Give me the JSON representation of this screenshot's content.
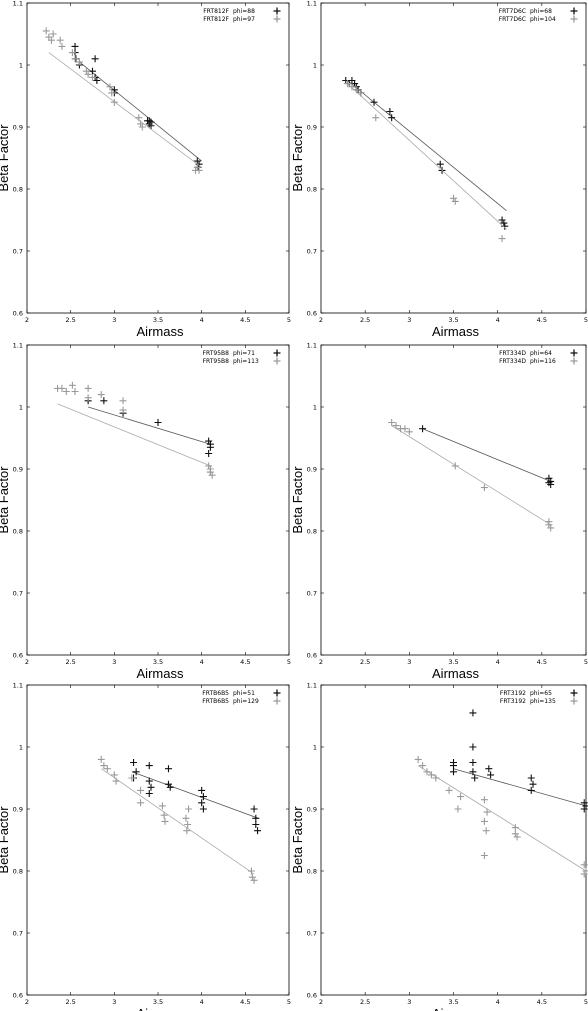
{
  "colors": {
    "dark": "#111111",
    "light": "#9a9a9a",
    "frame": "#000000",
    "dark_line": "#555555",
    "light_line": "#aaaaaa"
  },
  "chart_data": [
    {
      "type": "scatter",
      "xlabel": "Airmass",
      "ylabel": "Beta Factor",
      "xlim": [
        2,
        5
      ],
      "ylim": [
        0.6,
        1.1
      ],
      "xticks": [
        "2",
        "2.5",
        "3",
        "3.5",
        "4",
        "4.5",
        "5"
      ],
      "yticks": [
        "0.6",
        "0.7",
        "0.8",
        "0.9",
        "1",
        "1.1"
      ],
      "legend_position": "top-right",
      "series": [
        {
          "name": "FRT812F",
          "label": "phi=88",
          "color": "dark",
          "points": [
            [
              2.55,
              1.03
            ],
            [
              2.55,
              1.02
            ],
            [
              2.56,
              1.01
            ],
            [
              2.6,
              1.0
            ],
            [
              2.75,
              0.99
            ],
            [
              2.78,
              0.98
            ],
            [
              2.8,
              0.975
            ],
            [
              2.78,
              1.01
            ],
            [
              3.0,
              0.96
            ],
            [
              3.0,
              0.955
            ],
            [
              3.38,
              0.91
            ],
            [
              3.4,
              0.905
            ],
            [
              3.42,
              0.902
            ],
            [
              3.4,
              0.91
            ],
            [
              3.42,
              0.908
            ],
            [
              3.95,
              0.845
            ],
            [
              3.97,
              0.84
            ],
            [
              3.96,
              0.835
            ]
          ],
          "fit": [
            [
              2.6,
              1.005
            ],
            [
              4.0,
              0.845
            ]
          ]
        },
        {
          "name": "FRT812F",
          "label": "phi=97",
          "color": "light",
          "points": [
            [
              2.22,
              1.055
            ],
            [
              2.25,
              1.045
            ],
            [
              2.28,
              1.04
            ],
            [
              2.3,
              1.05
            ],
            [
              2.38,
              1.04
            ],
            [
              2.4,
              1.03
            ],
            [
              2.52,
              1.02
            ],
            [
              2.55,
              1.01
            ],
            [
              2.6,
              1.005
            ],
            [
              2.68,
              0.99
            ],
            [
              2.7,
              0.985
            ],
            [
              2.75,
              0.98
            ],
            [
              2.95,
              0.965
            ],
            [
              2.97,
              0.955
            ],
            [
              3.0,
              0.94
            ],
            [
              3.28,
              0.915
            ],
            [
              3.3,
              0.905
            ],
            [
              3.32,
              0.9
            ],
            [
              3.95,
              0.835
            ],
            [
              3.97,
              0.83
            ],
            [
              3.93,
              0.83
            ]
          ],
          "fit": [
            [
              2.25,
              1.02
            ],
            [
              4.0,
              0.835
            ]
          ]
        }
      ]
    },
    {
      "type": "scatter",
      "xlabel": "Airmass",
      "ylabel": "Beta Factor",
      "xlim": [
        2,
        5
      ],
      "ylim": [
        0.6,
        1.1
      ],
      "xticks": [
        "2",
        "2.5",
        "3",
        "3.5",
        "4",
        "4.5",
        "5"
      ],
      "yticks": [
        "0.6",
        "0.7",
        "0.8",
        "0.9",
        "1",
        "1.1"
      ],
      "legend_position": "top-right",
      "series": [
        {
          "name": "FRT7D6C",
          "label": "phi=68",
          "color": "dark",
          "points": [
            [
              2.28,
              0.975
            ],
            [
              2.32,
              0.97
            ],
            [
              2.35,
              0.975
            ],
            [
              2.38,
              0.97
            ],
            [
              2.4,
              0.965
            ],
            [
              2.42,
              0.96
            ],
            [
              2.45,
              0.955
            ],
            [
              2.6,
              0.94
            ],
            [
              2.78,
              0.925
            ],
            [
              2.8,
              0.915
            ],
            [
              3.35,
              0.84
            ],
            [
              3.37,
              0.83
            ],
            [
              4.05,
              0.75
            ],
            [
              4.07,
              0.745
            ],
            [
              4.08,
              0.74
            ]
          ],
          "fit": [
            [
              2.3,
              0.975
            ],
            [
              4.1,
              0.765
            ]
          ]
        },
        {
          "name": "FRT7D6C",
          "label": "phi=104",
          "color": "light",
          "points": [
            [
              2.3,
              0.97
            ],
            [
              2.35,
              0.965
            ],
            [
              2.4,
              0.96
            ],
            [
              2.45,
              0.955
            ],
            [
              2.62,
              0.915
            ],
            [
              3.5,
              0.785
            ],
            [
              3.52,
              0.78
            ],
            [
              4.05,
              0.72
            ]
          ],
          "fit": [
            [
              2.3,
              0.97
            ],
            [
              4.1,
              0.735
            ]
          ]
        }
      ]
    },
    {
      "type": "scatter",
      "xlabel": "Airmass",
      "ylabel": "Beta Factor",
      "xlim": [
        2,
        5
      ],
      "ylim": [
        0.6,
        1.1
      ],
      "xticks": [
        "2",
        "2.5",
        "3",
        "3.5",
        "4",
        "4.5",
        "5"
      ],
      "yticks": [
        "0.6",
        "0.7",
        "0.8",
        "0.9",
        "1",
        "1.1"
      ],
      "legend_position": "top-right",
      "series": [
        {
          "name": "FRT95B8",
          "label": "phi=71",
          "color": "dark",
          "points": [
            [
              2.7,
              1.01
            ],
            [
              2.88,
              1.01
            ],
            [
              3.1,
              0.99
            ],
            [
              3.5,
              0.975
            ],
            [
              4.08,
              0.945
            ],
            [
              4.1,
              0.94
            ],
            [
              4.1,
              0.935
            ],
            [
              4.08,
              0.925
            ]
          ],
          "fit": [
            [
              2.7,
              1.0
            ],
            [
              4.1,
              0.94
            ]
          ]
        },
        {
          "name": "FRT95B8",
          "label": "phi=113",
          "color": "light",
          "points": [
            [
              2.35,
              1.03
            ],
            [
              2.4,
              1.03
            ],
            [
              2.45,
              1.025
            ],
            [
              2.52,
              1.035
            ],
            [
              2.55,
              1.025
            ],
            [
              2.7,
              1.03
            ],
            [
              2.7,
              1.015
            ],
            [
              2.85,
              1.02
            ],
            [
              3.1,
              1.01
            ],
            [
              3.1,
              0.995
            ],
            [
              4.08,
              0.905
            ],
            [
              4.1,
              0.9
            ],
            [
              4.1,
              0.895
            ],
            [
              4.12,
              0.89
            ],
            [
              4.1,
              0.895
            ]
          ],
          "fit": [
            [
              2.35,
              1.005
            ],
            [
              4.1,
              0.905
            ]
          ]
        }
      ]
    },
    {
      "type": "scatter",
      "xlabel": "Airmass",
      "ylabel": "Beta Factor",
      "xlim": [
        2,
        5
      ],
      "ylim": [
        0.6,
        1.1
      ],
      "xticks": [
        "2",
        "2.5",
        "3",
        "3.5",
        "4",
        "4.5",
        "5"
      ],
      "yticks": [
        "0.6",
        "0.7",
        "0.8",
        "0.9",
        "1",
        "1.1"
      ],
      "legend_position": "top-right",
      "series": [
        {
          "name": "FRT334D",
          "label": "phi=64",
          "color": "dark",
          "points": [
            [
              3.15,
              0.965
            ],
            [
              4.58,
              0.885
            ],
            [
              4.6,
              0.88
            ],
            [
              4.6,
              0.875
            ],
            [
              4.58,
              0.878
            ]
          ],
          "fit": [
            [
              3.15,
              0.965
            ],
            [
              4.6,
              0.88
            ]
          ]
        },
        {
          "name": "FRT334D",
          "label": "phi=116",
          "color": "light",
          "points": [
            [
              2.8,
              0.975
            ],
            [
              2.85,
              0.97
            ],
            [
              2.9,
              0.965
            ],
            [
              2.95,
              0.965
            ],
            [
              3.0,
              0.96
            ],
            [
              3.52,
              0.905
            ],
            [
              3.85,
              0.87
            ],
            [
              4.58,
              0.815
            ],
            [
              4.58,
              0.81
            ],
            [
              4.6,
              0.805
            ]
          ],
          "fit": [
            [
              2.8,
              0.97
            ],
            [
              4.6,
              0.81
            ]
          ]
        }
      ]
    },
    {
      "type": "scatter",
      "xlabel": "Airmass",
      "ylabel": "Beta Factor",
      "xlim": [
        2,
        5
      ],
      "ylim": [
        0.6,
        1.1
      ],
      "xticks": [
        "2",
        "2.5",
        "3",
        "3.5",
        "4",
        "4.5",
        "5"
      ],
      "yticks": [
        "0.6",
        "0.7",
        "0.8",
        "0.9",
        "1",
        "1.1"
      ],
      "legend_position": "top-right",
      "series": [
        {
          "name": "FRTB6B5",
          "label": "phi=51",
          "color": "dark",
          "points": [
            [
              3.22,
              0.975
            ],
            [
              3.25,
              0.96
            ],
            [
              3.22,
              0.95
            ],
            [
              3.4,
              0.97
            ],
            [
              3.4,
              0.945
            ],
            [
              3.42,
              0.935
            ],
            [
              3.4,
              0.925
            ],
            [
              3.62,
              0.965
            ],
            [
              3.62,
              0.94
            ],
            [
              3.64,
              0.935
            ],
            [
              4.0,
              0.93
            ],
            [
              4.02,
              0.92
            ],
            [
              4.0,
              0.91
            ],
            [
              4.02,
              0.9
            ],
            [
              4.6,
              0.9
            ],
            [
              4.62,
              0.885
            ],
            [
              4.62,
              0.875
            ],
            [
              4.64,
              0.865
            ]
          ],
          "fit": [
            [
              3.2,
              0.96
            ],
            [
              4.65,
              0.885
            ]
          ]
        },
        {
          "name": "FRTB6B5",
          "label": "phi=129",
          "color": "light",
          "points": [
            [
              2.85,
              0.98
            ],
            [
              2.88,
              0.97
            ],
            [
              2.92,
              0.965
            ],
            [
              3.0,
              0.955
            ],
            [
              3.02,
              0.945
            ],
            [
              3.2,
              0.95
            ],
            [
              3.3,
              0.93
            ],
            [
              3.3,
              0.91
            ],
            [
              3.55,
              0.905
            ],
            [
              3.57,
              0.89
            ],
            [
              3.58,
              0.88
            ],
            [
              3.82,
              0.885
            ],
            [
              3.84,
              0.875
            ],
            [
              3.83,
              0.865
            ],
            [
              3.85,
              0.9
            ],
            [
              4.57,
              0.8
            ],
            [
              4.58,
              0.79
            ],
            [
              4.6,
              0.785
            ]
          ],
          "fit": [
            [
              2.85,
              0.965
            ],
            [
              4.6,
              0.795
            ]
          ]
        }
      ]
    },
    {
      "type": "scatter",
      "xlabel": "Airmass",
      "ylabel": "Beta Factor",
      "xlim": [
        2,
        5
      ],
      "ylim": [
        0.6,
        1.1
      ],
      "xticks": [
        "2",
        "2.5",
        "3",
        "3.5",
        "4",
        "4.5",
        "5"
      ],
      "yticks": [
        "0.6",
        "0.7",
        "0.8",
        "0.9",
        "1",
        "1.1"
      ],
      "legend_position": "top-right",
      "series": [
        {
          "name": "FRT3192",
          "label": "phi=65",
          "color": "dark",
          "points": [
            [
              3.5,
              0.975
            ],
            [
              3.5,
              0.97
            ],
            [
              3.5,
              0.96
            ],
            [
              3.72,
              1.055
            ],
            [
              3.72,
              1.0
            ],
            [
              3.72,
              0.975
            ],
            [
              3.72,
              0.96
            ],
            [
              3.74,
              0.95
            ],
            [
              3.9,
              0.965
            ],
            [
              3.92,
              0.955
            ],
            [
              4.38,
              0.95
            ],
            [
              4.4,
              0.94
            ],
            [
              4.38,
              0.93
            ],
            [
              4.98,
              0.91
            ],
            [
              5.0,
              0.905
            ],
            [
              4.98,
              0.9
            ]
          ],
          "fit": [
            [
              3.5,
              0.965
            ],
            [
              5.0,
              0.905
            ]
          ]
        },
        {
          "name": "FRT3192",
          "label": "phi=135",
          "color": "light",
          "points": [
            [
              3.1,
              0.98
            ],
            [
              3.15,
              0.97
            ],
            [
              3.2,
              0.96
            ],
            [
              3.25,
              0.955
            ],
            [
              3.3,
              0.95
            ],
            [
              3.45,
              0.93
            ],
            [
              3.55,
              0.9
            ],
            [
              3.58,
              0.92
            ],
            [
              3.85,
              0.915
            ],
            [
              3.88,
              0.895
            ],
            [
              3.85,
              0.88
            ],
            [
              3.87,
              0.865
            ],
            [
              3.85,
              0.825
            ],
            [
              4.2,
              0.87
            ],
            [
              4.2,
              0.86
            ],
            [
              4.22,
              0.855
            ],
            [
              4.98,
              0.81
            ],
            [
              5.0,
              0.8
            ],
            [
              4.98,
              0.795
            ]
          ],
          "fit": [
            [
              3.1,
              0.97
            ],
            [
              5.0,
              0.8
            ]
          ]
        }
      ]
    }
  ]
}
